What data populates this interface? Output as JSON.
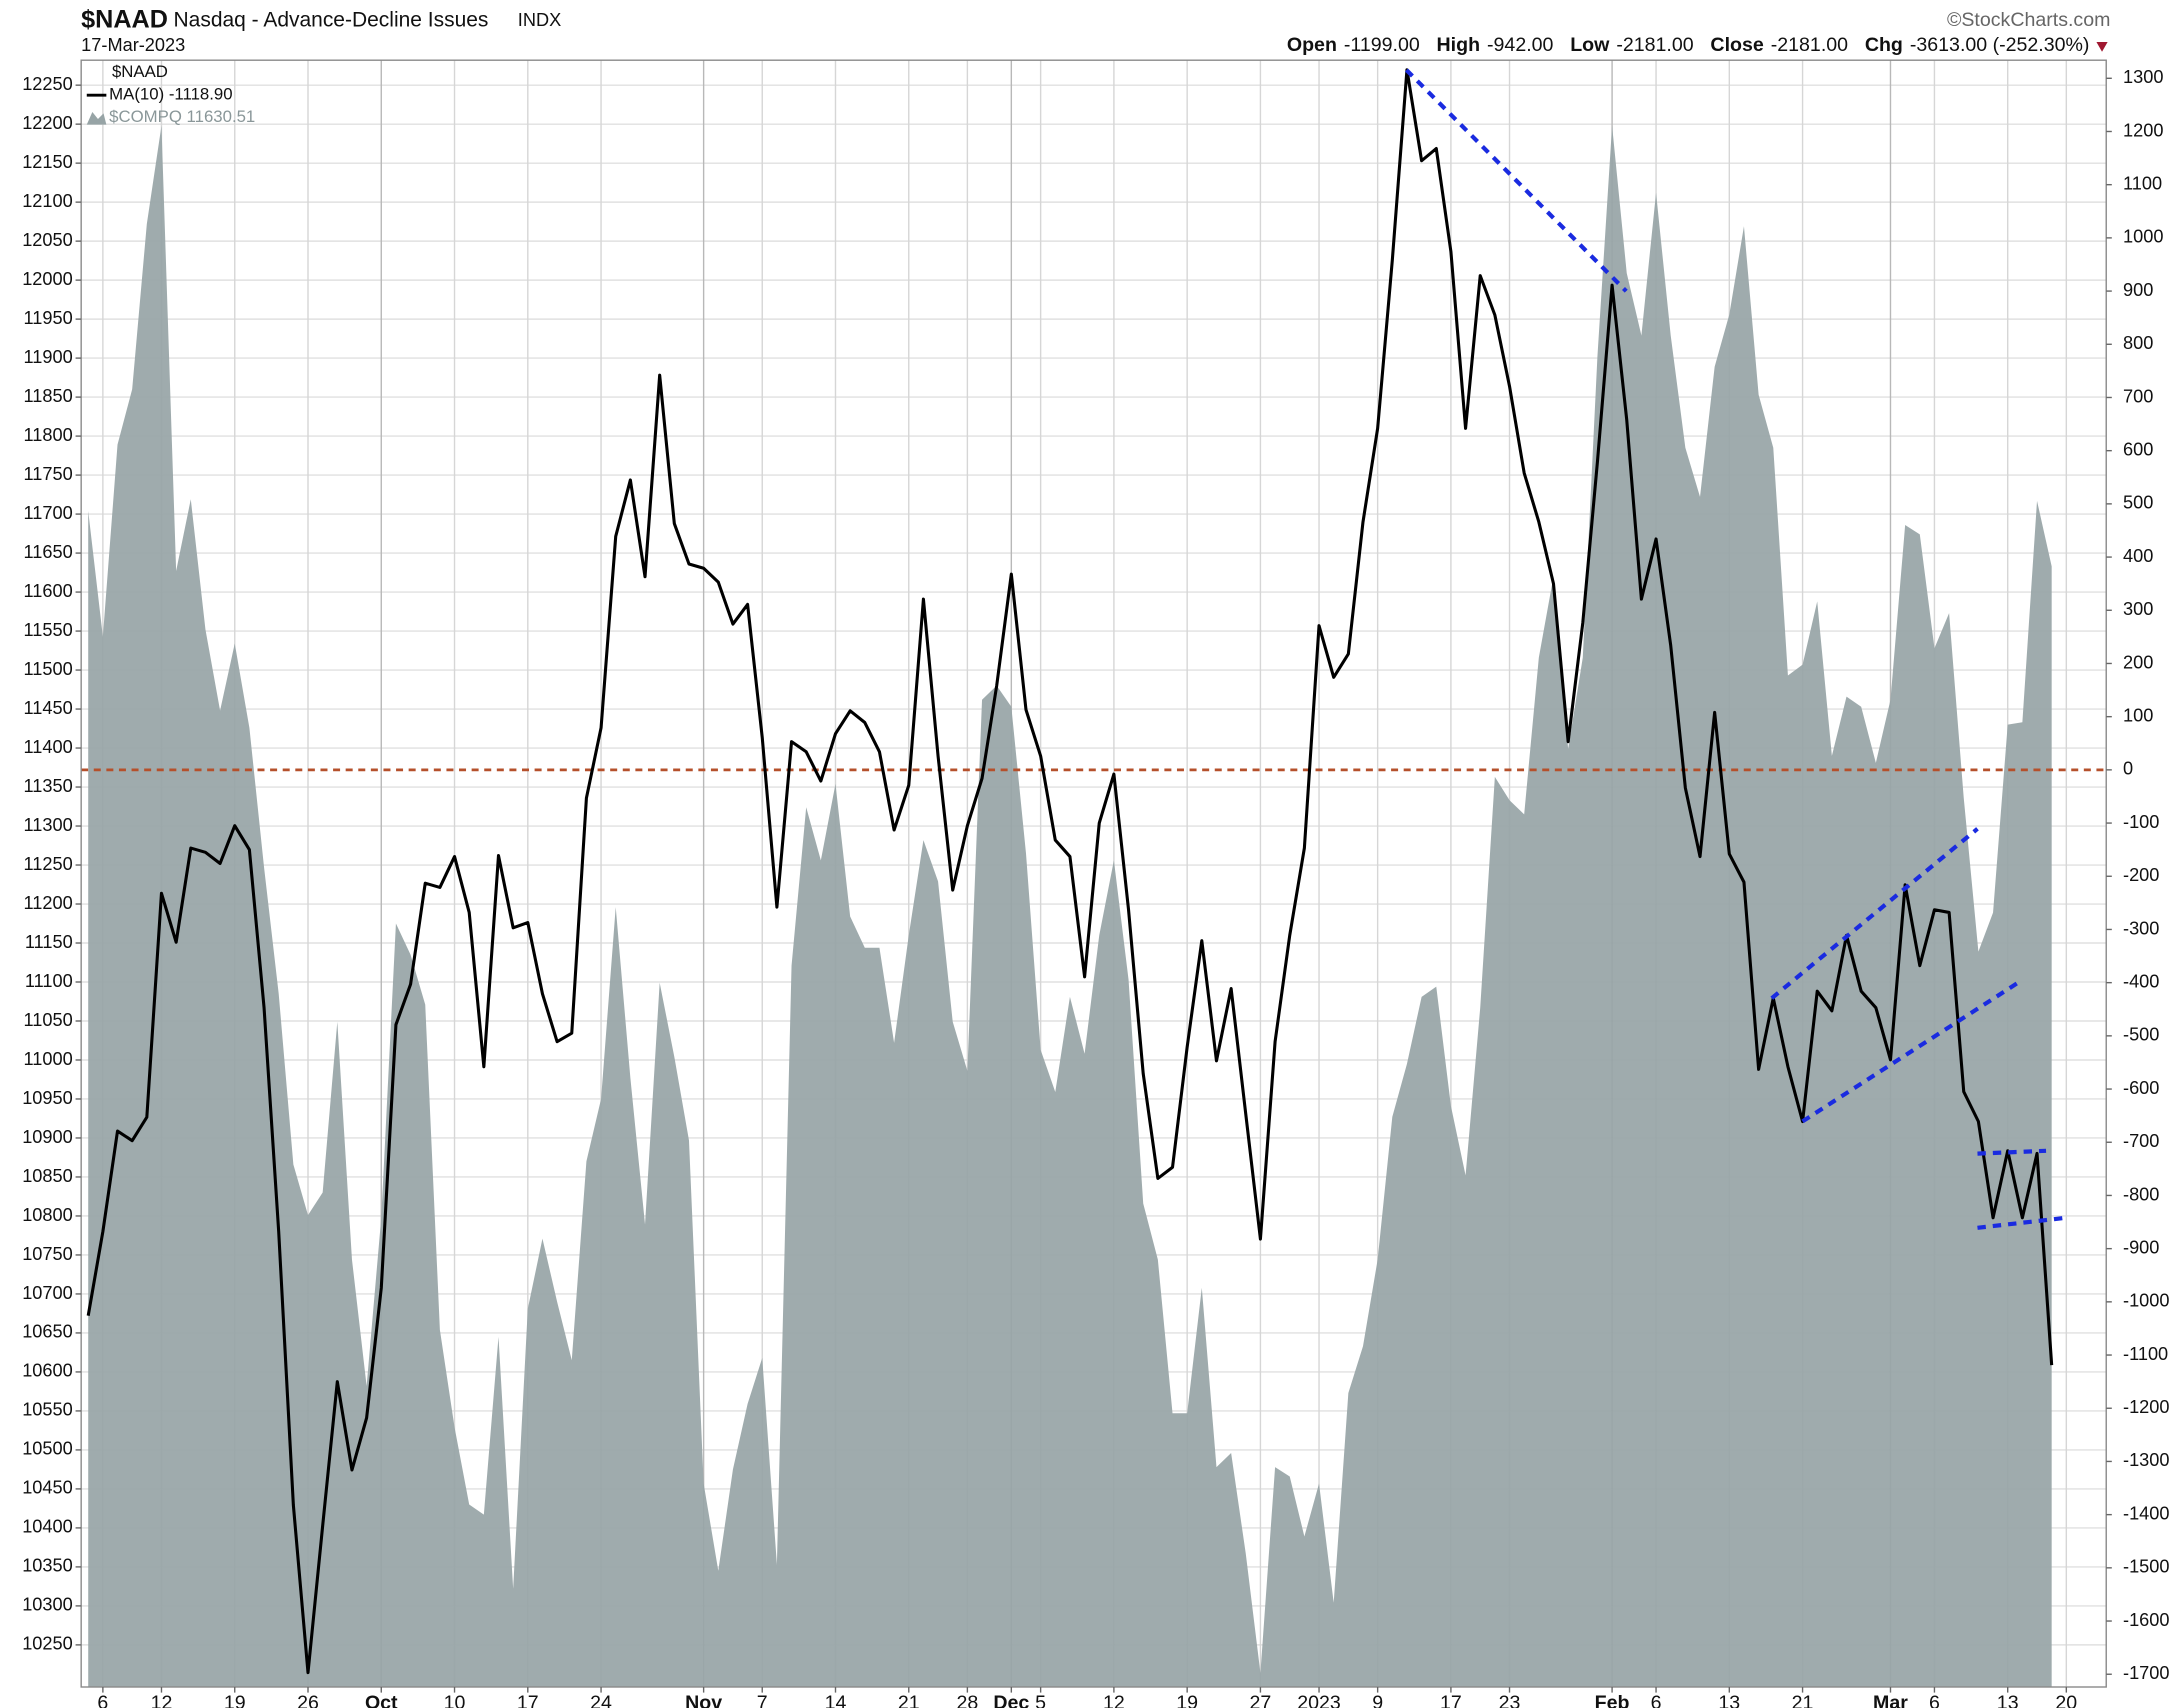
{
  "chart_data": {
    "type": "line",
    "title": "$NAAD",
    "subtitle": "Nasdaq - Advance-Decline Issues",
    "exchange": "INDX",
    "date": "17-Mar-2023",
    "source": "©StockCharts.com",
    "stats": [
      {
        "label": "Open",
        "value": "-1199.00"
      },
      {
        "label": "High",
        "value": "-942.00"
      },
      {
        "label": "Low",
        "value": "-2181.00"
      },
      {
        "label": "Close",
        "value": "-2181.00"
      },
      {
        "label": "Chg",
        "value": "-3613.00 (-252.30%)"
      }
    ],
    "legend_title": "$NAAD",
    "categories": [
      null,
      "6",
      null,
      null,
      null,
      "12",
      null,
      null,
      null,
      null,
      "19",
      null,
      null,
      null,
      null,
      "26",
      null,
      null,
      null,
      null,
      "Oct",
      null,
      null,
      null,
      null,
      "10",
      null,
      null,
      null,
      null,
      "17",
      null,
      null,
      null,
      null,
      "24",
      null,
      null,
      null,
      null,
      null,
      null,
      "Nov",
      null,
      null,
      null,
      "7",
      null,
      null,
      null,
      null,
      "14",
      null,
      null,
      null,
      null,
      "21",
      null,
      null,
      null,
      "28",
      null,
      null,
      "Dec",
      null,
      "5",
      null,
      null,
      null,
      null,
      "12",
      null,
      null,
      null,
      null,
      "19",
      null,
      null,
      null,
      null,
      "27",
      null,
      null,
      null,
      "2023",
      null,
      null,
      null,
      "9",
      null,
      null,
      null,
      null,
      "17",
      null,
      null,
      null,
      "23",
      null,
      null,
      null,
      null,
      null,
      null,
      "Feb",
      null,
      null,
      "6",
      null,
      null,
      null,
      null,
      "13",
      null,
      null,
      null,
      null,
      "21",
      null,
      null,
      null,
      null,
      null,
      "Mar",
      null,
      null,
      "6",
      null,
      null,
      null,
      null,
      "13",
      null,
      null,
      null,
      "20"
    ],
    "series": [
      {
        "name": "$COMPQ 11630.51",
        "type": "area",
        "color": "#97a4a6",
        "values": [
          11704,
          11543,
          11789,
          11860,
          12072,
          12198,
          11627,
          11719,
          11552,
          11448,
          11534,
          11426,
          11247,
          11085,
          10866,
          10801,
          10830,
          11049,
          10744,
          10582,
          10798,
          11175,
          11135,
          11071,
          10654,
          10529,
          10430,
          10417,
          10645,
          10322,
          10681,
          10771,
          10690,
          10615,
          10870,
          10950,
          11196,
          10977,
          10789,
          11099,
          11004,
          10897,
          10457,
          10345,
          10475,
          10559,
          10618,
          10353,
          11121,
          11324,
          11256,
          11354,
          11184,
          11144,
          11144,
          11022,
          11160,
          11282,
          11229,
          11049,
          10986,
          11462,
          11480,
          11453,
          11265,
          11013,
          10959,
          11081,
          11008,
          11160,
          11256,
          11103,
          10816,
          10744,
          10547,
          10547,
          10708,
          10478,
          10496,
          10367,
          10214,
          10478,
          10466,
          10389,
          10457,
          10304,
          10573,
          10633,
          10744,
          10927,
          10995,
          11081,
          11094,
          10941,
          10852,
          11067,
          11363,
          11333,
          11315,
          11516,
          11620,
          11399,
          11516,
          11902,
          12198,
          12009,
          11929,
          12112,
          11929,
          11785,
          11722,
          11889,
          11956,
          12069,
          11853,
          11785,
          11493,
          11507,
          11588,
          11390,
          11466,
          11453,
          11381,
          11462,
          11686,
          11674,
          11528,
          11573,
          11336,
          11139,
          11189,
          11430,
          11433,
          11717,
          11633,
          null
        ]
      },
      {
        "name": "MA(10) -1118.90",
        "type": "line",
        "axis": "y2",
        "color": "#000000",
        "values": [
          -1026,
          -868,
          -679,
          -697,
          -653,
          -232,
          -324,
          -147,
          -155,
          -176,
          -105,
          -150,
          -447,
          -868,
          -1382,
          -1697,
          -1421,
          -1150,
          -1316,
          -1218,
          -974,
          -479,
          -403,
          -213,
          -221,
          -163,
          -268,
          -558,
          -161,
          -297,
          -287,
          -421,
          -511,
          -495,
          -53,
          79,
          439,
          545,
          363,
          742,
          463,
          387,
          379,
          353,
          274,
          311,
          61,
          -258,
          53,
          34,
          -21,
          68,
          111,
          89,
          34,
          -113,
          -29,
          321,
          26,
          -226,
          -105,
          -16,
          158,
          368,
          113,
          26,
          -132,
          -163,
          -389,
          -100,
          -8,
          -263,
          -571,
          -768,
          -747,
          -521,
          -321,
          -547,
          -411,
          -647,
          -882,
          -511,
          -311,
          -147,
          271,
          174,
          218,
          466,
          642,
          958,
          1316,
          1145,
          1168,
          974,
          642,
          929,
          855,
          721,
          558,
          466,
          350,
          53,
          276,
          579,
          911,
          658,
          321,
          434,
          234,
          -34,
          -163,
          108,
          -158,
          -211,
          -563,
          -429,
          -558,
          -661,
          -416,
          -453,
          -311,
          -416,
          -447,
          -545,
          -216,
          -368,
          -263,
          -268,
          -605,
          -661,
          -842,
          -716,
          -842,
          -721,
          -1119,
          null
        ]
      }
    ],
    "ylim": [
      10196,
      12282
    ],
    "yticks": [
      10250,
      10300,
      10350,
      10400,
      10450,
      10500,
      10550,
      10600,
      10650,
      10700,
      10750,
      10800,
      10850,
      10900,
      10950,
      11000,
      11050,
      11100,
      11150,
      11200,
      11250,
      11300,
      11350,
      11400,
      11450,
      11500,
      11550,
      11600,
      11650,
      11700,
      11750,
      11800,
      11850,
      11900,
      11950,
      12000,
      12050,
      12100,
      12150,
      12200,
      12250
    ],
    "y2lim": [
      -1724,
      1334
    ],
    "y2ticks": [
      -1700,
      -1600,
      -1500,
      -1400,
      -1300,
      -1200,
      -1100,
      -1000,
      -900,
      -800,
      -700,
      -600,
      -500,
      -400,
      -300,
      -200,
      -100,
      0,
      100,
      200,
      300,
      400,
      500,
      600,
      700,
      800,
      900,
      1000,
      1100,
      1200,
      1300
    ],
    "hline": 0,
    "hline_color": "#b5502b",
    "grid": true
  }
}
